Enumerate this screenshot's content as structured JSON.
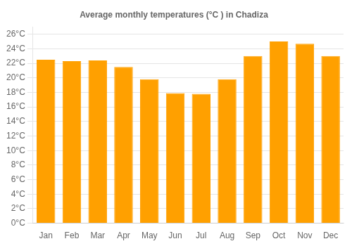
{
  "chart_data": {
    "type": "bar",
    "title": "Average monthly temperatures (°C ) in Chadiza",
    "categories": [
      "Jan",
      "Feb",
      "Mar",
      "Apr",
      "May",
      "Jun",
      "Jul",
      "Aug",
      "Sep",
      "Oct",
      "Nov",
      "Dec"
    ],
    "values": [
      22.5,
      22.3,
      22.4,
      21.5,
      19.8,
      17.9,
      17.8,
      19.8,
      23.0,
      25.0,
      24.7,
      23.0
    ],
    "color": "#FFA000",
    "ylim": [
      0,
      27
    ],
    "yticks": [
      {
        "value": 0,
        "label": "0°C"
      },
      {
        "value": 2,
        "label": "2°C"
      },
      {
        "value": 4,
        "label": "4°C"
      },
      {
        "value": 6,
        "label": "6°C"
      },
      {
        "value": 8,
        "label": "8°C"
      },
      {
        "value": 10,
        "label": "10°C"
      },
      {
        "value": 12,
        "label": "12°C"
      },
      {
        "value": 14,
        "label": "14°C"
      },
      {
        "value": 16,
        "label": "16°C"
      },
      {
        "value": 18,
        "label": "18°C"
      },
      {
        "value": 20,
        "label": "20°C"
      },
      {
        "value": 22,
        "label": "22°C"
      },
      {
        "value": 24,
        "label": "24°C"
      },
      {
        "value": 26,
        "label": "26°C"
      }
    ],
    "grid": true
  }
}
